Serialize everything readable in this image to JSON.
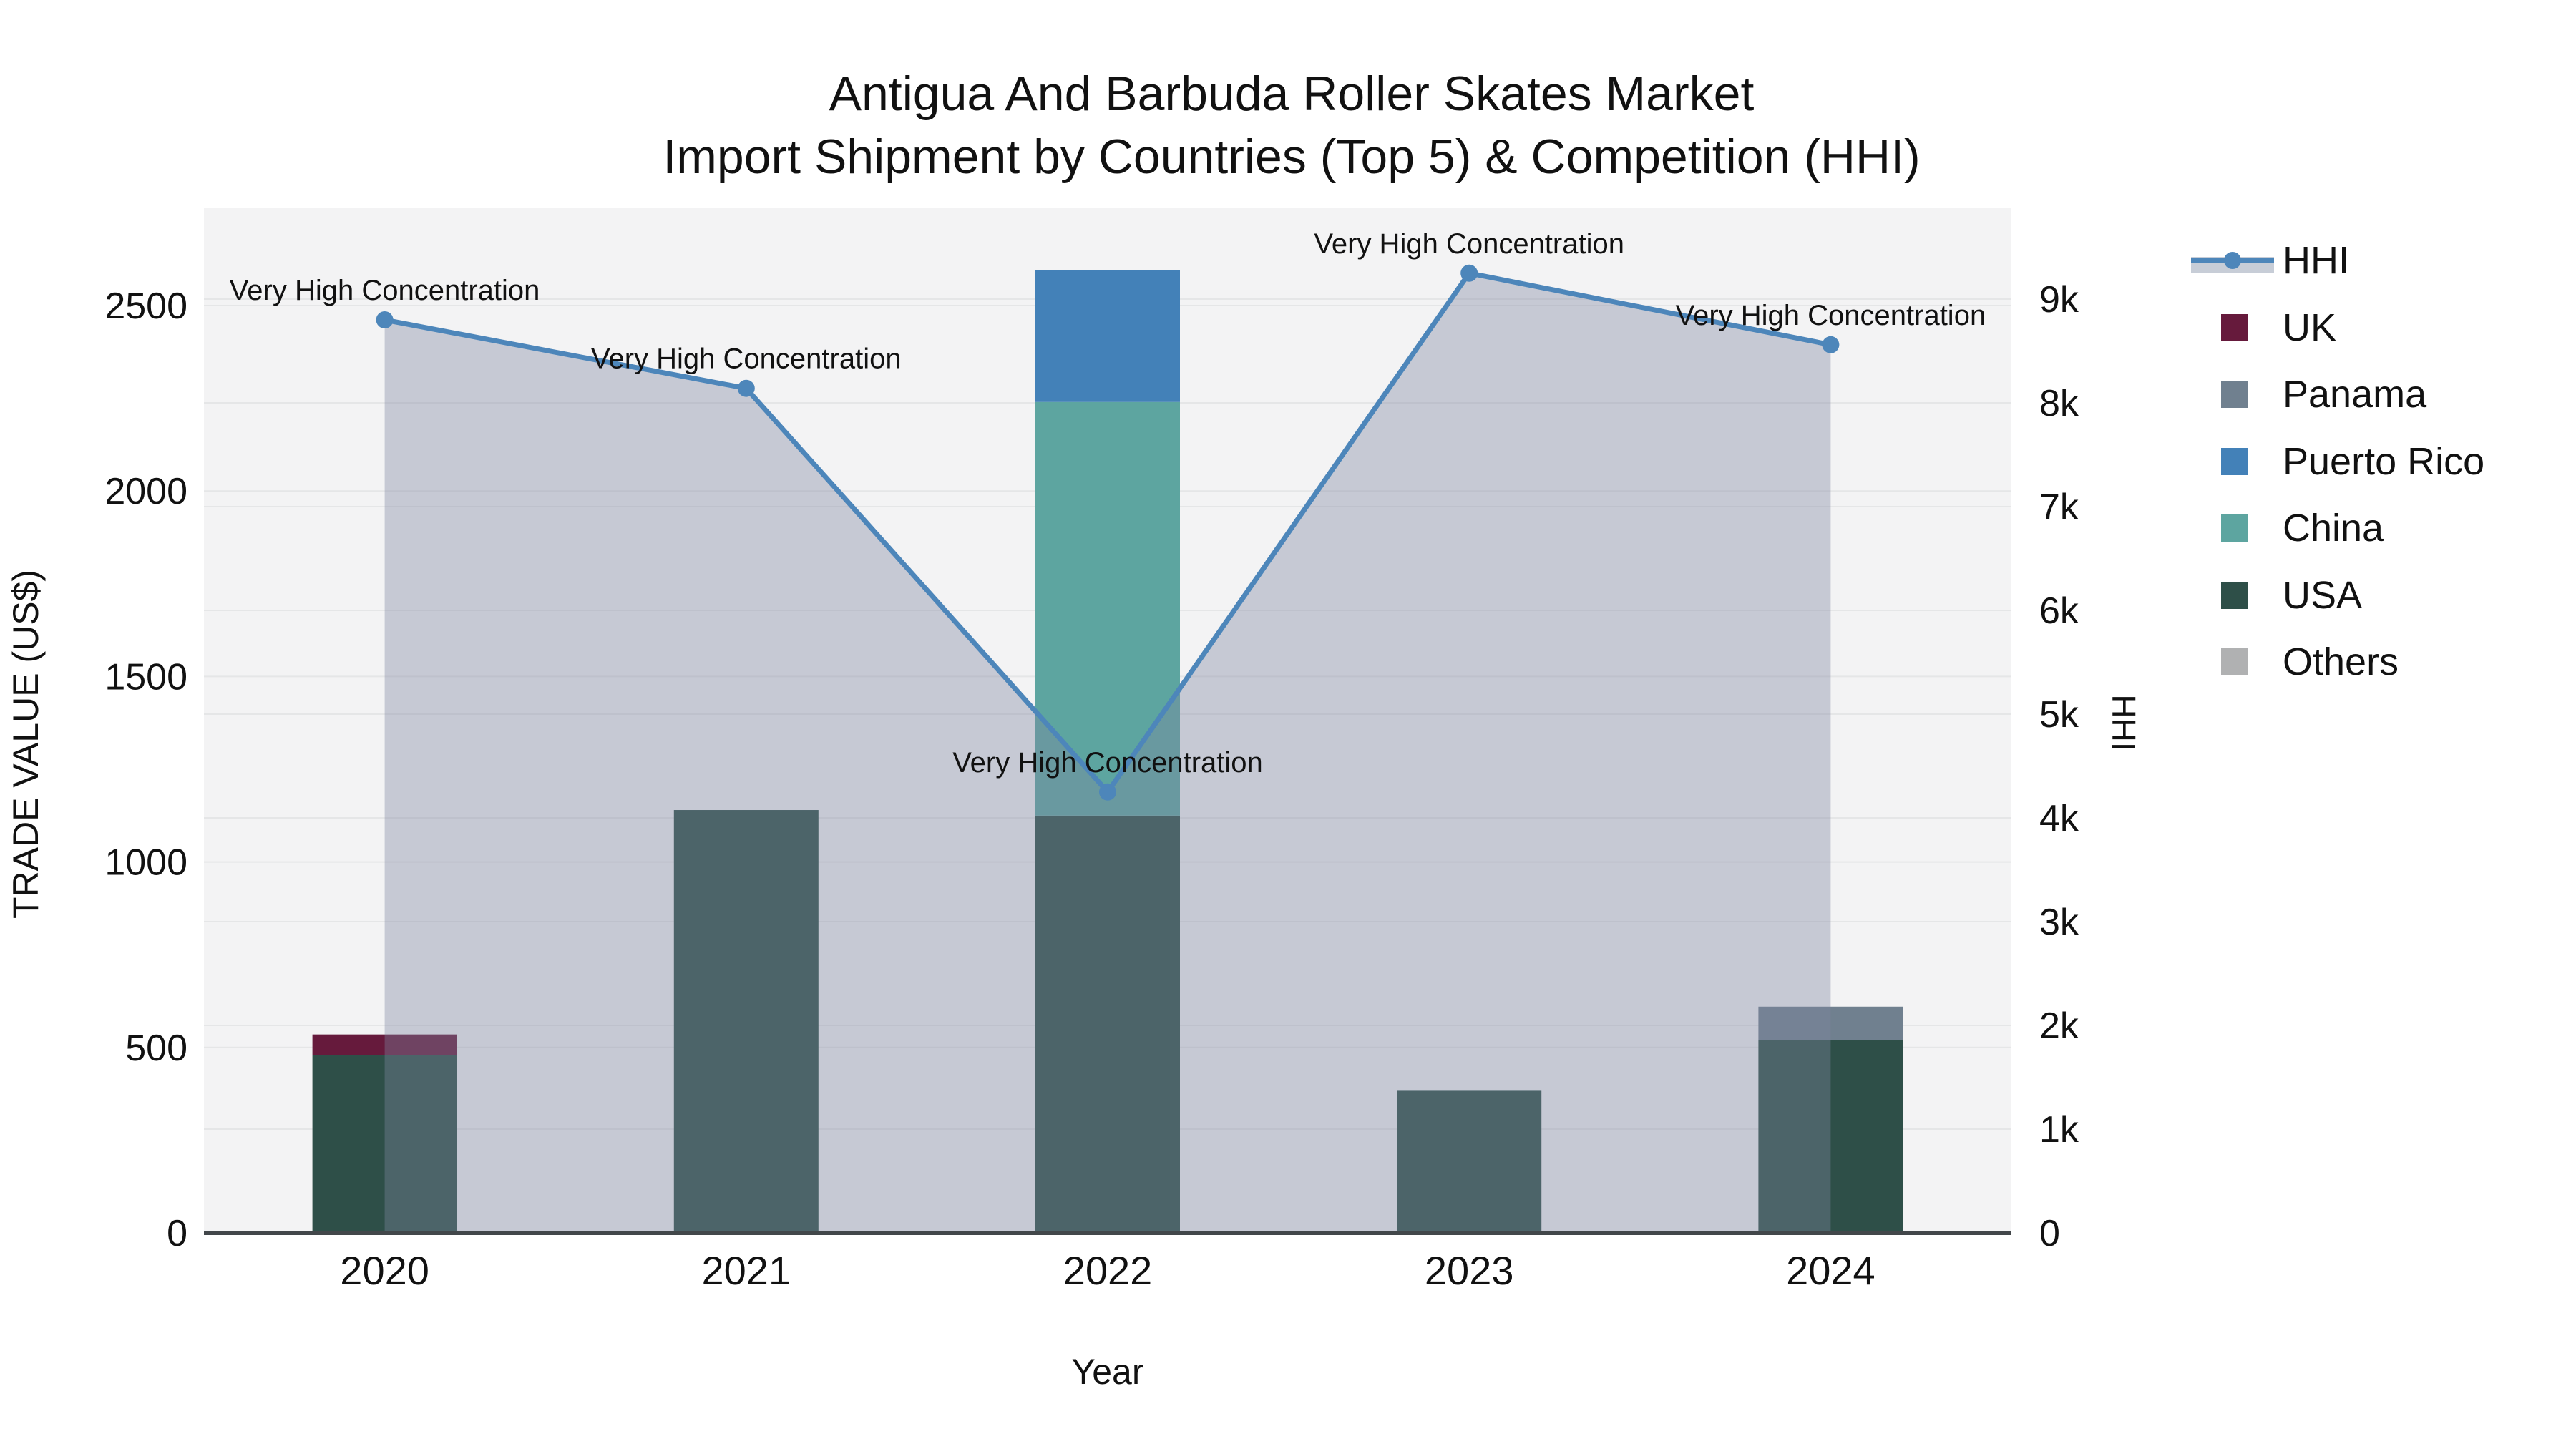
{
  "title": {
    "line1": "Antigua And Barbuda Roller Skates Market",
    "line2": "Import Shipment by Countries (Top 5) & Competition (HHI)"
  },
  "axes": {
    "x": {
      "title": "Year"
    },
    "y_left": {
      "title": "TRADE VALUE (US$)",
      "ticks": [
        0,
        500,
        1000,
        1500,
        2000,
        2500
      ]
    },
    "y_right": {
      "title": "HHI",
      "ticks": [
        0,
        1000,
        2000,
        3000,
        4000,
        5000,
        6000,
        7000,
        8000,
        9000
      ],
      "tick_labels": [
        "0",
        "1k",
        "2k",
        "3k",
        "4k",
        "5k",
        "6k",
        "7k",
        "8k",
        "9k"
      ]
    }
  },
  "legend_items": [
    "HHI",
    "UK",
    "Panama",
    "Puerto Rico",
    "China",
    "USA",
    "Others"
  ],
  "colors": {
    "UK": "#661a3c",
    "Panama": "#70808f",
    "Puerto Rico": "#4381b8",
    "China": "#5da5a0",
    "USA": "#2e4f48",
    "Others": "#b0b1b2",
    "hhi_line": "#4d86ba",
    "hhi_area": "rgba(125,135,161,0.38)",
    "plot_bg": "#f3f3f4",
    "gridline": "#e5e6e7",
    "axis_line": "#42474a"
  },
  "chart_data": {
    "type": "bar+line",
    "title": "Antigua And Barbuda Roller Skates Market Import Shipment by Countries (Top 5) & Competition (HHI)",
    "categories": [
      "2020",
      "2021",
      "2022",
      "2023",
      "2024"
    ],
    "xlabel": "Year",
    "ylabel_left": "TRADE VALUE (US$)",
    "ylabel_right": "HHI",
    "ylim_left": [
      0,
      2760
    ],
    "ylim_right": [
      0,
      9880
    ],
    "grid": true,
    "legend_position": "right",
    "stack_order_bottom_to_top": [
      "USA",
      "China",
      "Puerto Rico",
      "Panama",
      "UK",
      "Others"
    ],
    "bar_series": [
      {
        "name": "USA",
        "values": [
          480,
          1140,
          1125,
          385,
          520
        ]
      },
      {
        "name": "China",
        "values": [
          0,
          0,
          1115,
          0,
          0
        ]
      },
      {
        "name": "Puerto Rico",
        "values": [
          0,
          0,
          355,
          0,
          0
        ]
      },
      {
        "name": "Panama",
        "values": [
          0,
          0,
          0,
          0,
          90
        ]
      },
      {
        "name": "UK",
        "values": [
          55,
          0,
          0,
          0,
          0
        ]
      },
      {
        "name": "Others",
        "values": [
          0,
          0,
          0,
          0,
          0
        ]
      }
    ],
    "line_series": {
      "name": "HHI",
      "axis": "right",
      "area_to_zero": true,
      "values": [
        8800,
        8140,
        4250,
        9250,
        8560
      ]
    },
    "annotations": [
      {
        "x": "2020",
        "text": "Very High Concentration"
      },
      {
        "x": "2021",
        "text": "Very High Concentration"
      },
      {
        "x": "2022",
        "text": "Very High Concentration"
      },
      {
        "x": "2023",
        "text": "Very High Concentration"
      },
      {
        "x": "2024",
        "text": "Very High Concentration"
      }
    ]
  }
}
